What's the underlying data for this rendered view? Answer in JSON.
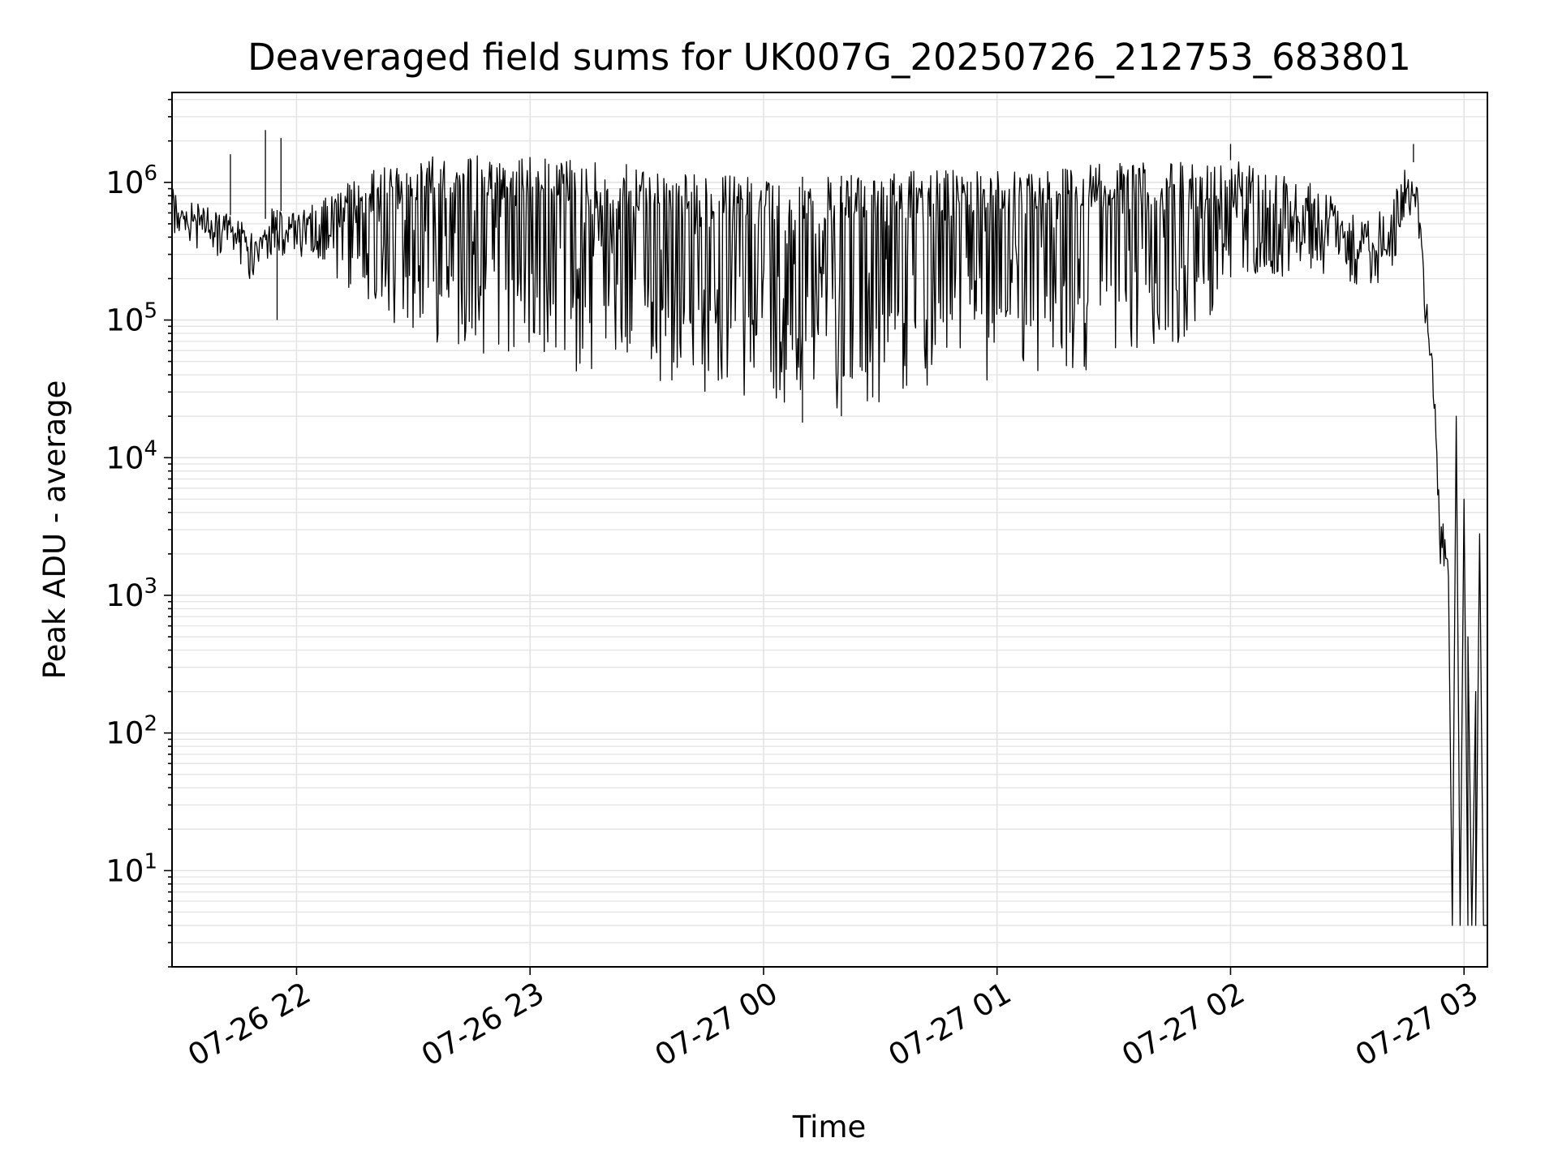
{
  "chart_data": {
    "type": "line",
    "title": "Deaveraged field sums for UK007G_20250726_212753_683801",
    "xlabel": "Time",
    "ylabel": "Peak ADU - average",
    "yscale": "log",
    "ylim": [
      2,
      4500000
    ],
    "xlim": [
      "2025-07-26 21:28",
      "2025-07-27 03:06"
    ],
    "x_ticks": [
      {
        "label": "07-26 22",
        "time": "2025-07-26 22:00"
      },
      {
        "label": "07-26 23",
        "time": "2025-07-26 23:00"
      },
      {
        "label": "07-27 00",
        "time": "2025-07-27 00:00"
      },
      {
        "label": "07-27 01",
        "time": "2025-07-27 01:00"
      },
      {
        "label": "07-27 02",
        "time": "2025-07-27 02:00"
      },
      {
        "label": "07-27 03",
        "time": "2025-07-27 03:00"
      }
    ],
    "y_ticks": [
      {
        "base": "10",
        "exp": "1",
        "value": 10
      },
      {
        "base": "10",
        "exp": "2",
        "value": 100
      },
      {
        "base": "10",
        "exp": "3",
        "value": 1000
      },
      {
        "base": "10",
        "exp": "4",
        "value": 10000
      },
      {
        "base": "10",
        "exp": "5",
        "value": 100000
      },
      {
        "base": "10",
        "exp": "6",
        "value": 1000000
      }
    ],
    "grid": true,
    "line_color": "#000000",
    "series": [
      {
        "upper": [
          [
            "2025-07-26 21:28",
            900000
          ],
          [
            "2025-07-26 21:35",
            700000
          ],
          [
            "2025-07-26 21:45",
            550000
          ],
          [
            "2025-07-26 21:50",
            380000
          ],
          [
            "2025-07-26 21:53",
            650000
          ],
          [
            "2025-07-26 21:58",
            600000
          ],
          [
            "2025-07-26 22:05",
            700000
          ],
          [
            "2025-07-26 22:15",
            1100000
          ],
          [
            "2025-07-26 22:30",
            1550000
          ],
          [
            "2025-07-26 22:50",
            1600000
          ],
          [
            "2025-07-26 23:10",
            1500000
          ],
          [
            "2025-07-26 23:30",
            1300000
          ],
          [
            "2025-07-26 23:45",
            1150000
          ],
          [
            "2025-07-27 00:00",
            1100000
          ],
          [
            "2025-07-27 00:15",
            1100000
          ],
          [
            "2025-07-27 00:30",
            1150000
          ],
          [
            "2025-07-27 00:45",
            1250000
          ],
          [
            "2025-07-27 01:00",
            1300000
          ],
          [
            "2025-07-27 01:20",
            1350000
          ],
          [
            "2025-07-27 01:45",
            1400000
          ],
          [
            "2025-07-27 02:00",
            1450000
          ],
          [
            "2025-07-27 02:10",
            1300000
          ],
          [
            "2025-07-27 02:25",
            900000
          ],
          [
            "2025-07-27 02:35",
            650000
          ],
          [
            "2025-07-27 02:40",
            700000
          ],
          [
            "2025-07-27 02:45",
            1300000
          ],
          [
            "2025-07-27 02:47",
            1400000
          ],
          [
            "2025-07-27 02:48",
            900000
          ],
          [
            "2025-07-27 02:50",
            200000
          ],
          [
            "2025-07-27 02:52",
            50000
          ],
          [
            "2025-07-27 02:53",
            15000
          ],
          [
            "2025-07-27 02:54",
            4000
          ],
          [
            "2025-07-27 02:56",
            2500
          ]
        ],
        "lower": [
          [
            "2025-07-26 21:28",
            450000
          ],
          [
            "2025-07-26 21:35",
            420000
          ],
          [
            "2025-07-26 21:45",
            350000
          ],
          [
            "2025-07-26 21:50",
            300000
          ],
          [
            "2025-07-26 21:53",
            400000
          ],
          [
            "2025-07-26 21:58",
            350000
          ],
          [
            "2025-07-26 22:05",
            250000
          ],
          [
            "2025-07-26 22:15",
            150000
          ],
          [
            "2025-07-26 22:30",
            75000
          ],
          [
            "2025-07-26 22:50",
            55000
          ],
          [
            "2025-07-26 23:10",
            40000
          ],
          [
            "2025-07-26 23:30",
            35000
          ],
          [
            "2025-07-26 23:45",
            30000
          ],
          [
            "2025-07-27 00:00",
            25000
          ],
          [
            "2025-07-27 00:15",
            22000
          ],
          [
            "2025-07-27 00:30",
            25000
          ],
          [
            "2025-07-27 00:45",
            30000
          ],
          [
            "2025-07-27 01:00",
            35000
          ],
          [
            "2025-07-27 01:20",
            40000
          ],
          [
            "2025-07-27 01:45",
            60000
          ],
          [
            "2025-07-27 02:00",
            150000
          ],
          [
            "2025-07-27 02:10",
            200000
          ],
          [
            "2025-07-27 02:25",
            200000
          ],
          [
            "2025-07-27 02:35",
            170000
          ],
          [
            "2025-07-27 02:40",
            200000
          ],
          [
            "2025-07-27 02:45",
            400000
          ],
          [
            "2025-07-27 02:47",
            700000
          ],
          [
            "2025-07-27 02:48",
            600000
          ],
          [
            "2025-07-27 02:50",
            150000
          ],
          [
            "2025-07-27 02:52",
            30000
          ],
          [
            "2025-07-27 02:53",
            8000
          ],
          [
            "2025-07-27 02:54",
            1500
          ],
          [
            "2025-07-27 02:56",
            900
          ]
        ],
        "points": [
          [
            "2025-07-26 21:43",
            1600000
          ],
          [
            "2025-07-26 21:52",
            2400000
          ],
          [
            "2025-07-26 21:56",
            2100000
          ],
          [
            "2025-07-26 21:55",
            100000
          ],
          [
            "2025-07-27 00:10",
            18000
          ],
          [
            "2025-07-27 00:20",
            20000
          ],
          [
            "2025-07-27 02:00",
            1900000
          ],
          [
            "2025-07-27 02:47",
            1900000
          ],
          [
            "2025-07-27 02:57",
            4
          ],
          [
            "2025-07-27 02:58",
            20000
          ],
          [
            "2025-07-27 02:59",
            4
          ],
          [
            "2025-07-27 03:00",
            5000
          ],
          [
            "2025-07-27 03:01",
            4
          ],
          [
            "2025-07-27 03:01",
            500
          ],
          [
            "2025-07-27 03:02",
            4
          ],
          [
            "2025-07-27 03:03",
            200
          ],
          [
            "2025-07-27 03:03",
            4
          ],
          [
            "2025-07-27 03:04",
            2800
          ],
          [
            "2025-07-27 03:05",
            4
          ],
          [
            "2025-07-27 03:06",
            4
          ]
        ]
      }
    ]
  }
}
